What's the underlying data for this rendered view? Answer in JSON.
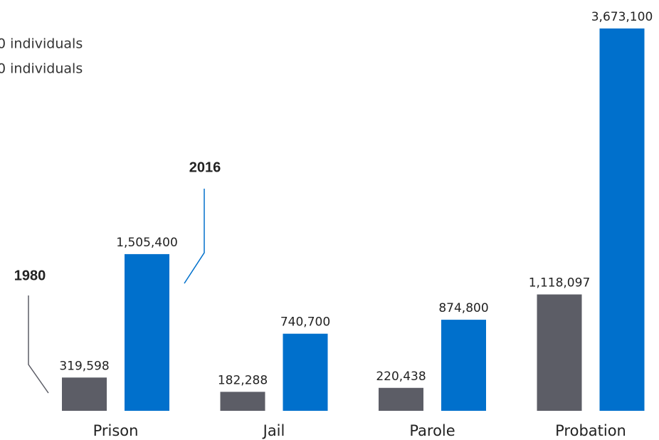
{
  "chart_data": {
    "type": "bar",
    "annotations": [
      "0 individuals",
      "0 individuals"
    ],
    "categories": [
      "Prison",
      "Jail",
      "Parole",
      "Probation"
    ],
    "series": [
      {
        "name": "1980",
        "color": "#5c5d66",
        "values": [
          319598,
          182288,
          220438,
          1118097
        ],
        "value_labels": [
          "319,598",
          "182,288",
          "220,438",
          "1,118,097"
        ]
      },
      {
        "name": "2016",
        "color": "#0070cc",
        "values": [
          1505400,
          740700,
          874800,
          3673100
        ],
        "value_labels": [
          "1,505,400",
          "740,700",
          "874,800",
          "3,673,100"
        ]
      }
    ]
  }
}
